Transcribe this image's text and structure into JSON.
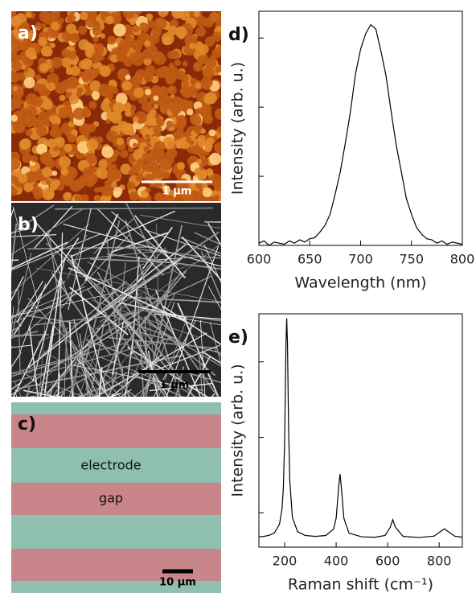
{
  "panels": {
    "a": {
      "label": "a)",
      "scale": "1 µm"
    },
    "b": {
      "label": "b)",
      "scale": "1 µm"
    },
    "c": {
      "label": "c)",
      "scale": "10 µm",
      "electrode": "electrode",
      "gap": "gap"
    }
  },
  "chart_data": [
    {
      "type": "line",
      "label": "d)",
      "x_label": "Wavelength (nm)",
      "y_label": "Intensity (arb. u.)",
      "color": "#000000",
      "x": [
        600,
        605,
        610,
        615,
        620,
        625,
        630,
        635,
        640,
        645,
        650,
        655,
        660,
        665,
        670,
        675,
        680,
        685,
        690,
        695,
        700,
        705,
        710,
        715,
        720,
        725,
        730,
        735,
        740,
        745,
        750,
        755,
        760,
        765,
        770,
        775,
        780,
        785,
        790,
        795,
        800
      ],
      "values": [
        0.01,
        0.02,
        0.0,
        0.015,
        0.01,
        0.005,
        0.02,
        0.01,
        0.025,
        0.015,
        0.03,
        0.035,
        0.06,
        0.09,
        0.14,
        0.23,
        0.33,
        0.46,
        0.6,
        0.77,
        0.88,
        0.95,
        0.99,
        0.97,
        0.87,
        0.76,
        0.6,
        0.45,
        0.33,
        0.21,
        0.14,
        0.08,
        0.05,
        0.03,
        0.025,
        0.01,
        0.02,
        0.005,
        0.015,
        0.01,
        0.005
      ],
      "xlim": [
        600,
        800
      ],
      "xticks": [
        600,
        650,
        700,
        750,
        800
      ],
      "ylim": [
        0,
        1.05
      ],
      "yticks": [
        0.31,
        0.62,
        0.93
      ]
    },
    {
      "type": "line",
      "label": "e)",
      "x_label": "Raman shift (cm⁻¹)",
      "y_label": "Intensity (arb. u.)",
      "color": "#000000",
      "x": [
        100,
        120,
        140,
        160,
        180,
        190,
        195,
        200,
        205,
        208,
        211,
        215,
        220,
        230,
        250,
        280,
        320,
        360,
        390,
        400,
        410,
        415,
        420,
        430,
        450,
        500,
        550,
        590,
        610,
        620,
        630,
        660,
        720,
        780,
        810,
        820,
        830,
        860,
        890
      ],
      "values": [
        0.045,
        0.047,
        0.052,
        0.062,
        0.1,
        0.17,
        0.26,
        0.47,
        0.89,
        1.0,
        0.89,
        0.54,
        0.29,
        0.13,
        0.068,
        0.051,
        0.047,
        0.051,
        0.079,
        0.126,
        0.264,
        0.32,
        0.264,
        0.126,
        0.061,
        0.045,
        0.043,
        0.051,
        0.087,
        0.12,
        0.087,
        0.047,
        0.042,
        0.048,
        0.072,
        0.08,
        0.072,
        0.048,
        0.043
      ],
      "xlim": [
        100,
        890
      ],
      "xticks": [
        200,
        400,
        600,
        800
      ],
      "ylim": [
        0,
        1.02
      ],
      "yticks": [
        0.15,
        0.48,
        0.81
      ]
    }
  ]
}
